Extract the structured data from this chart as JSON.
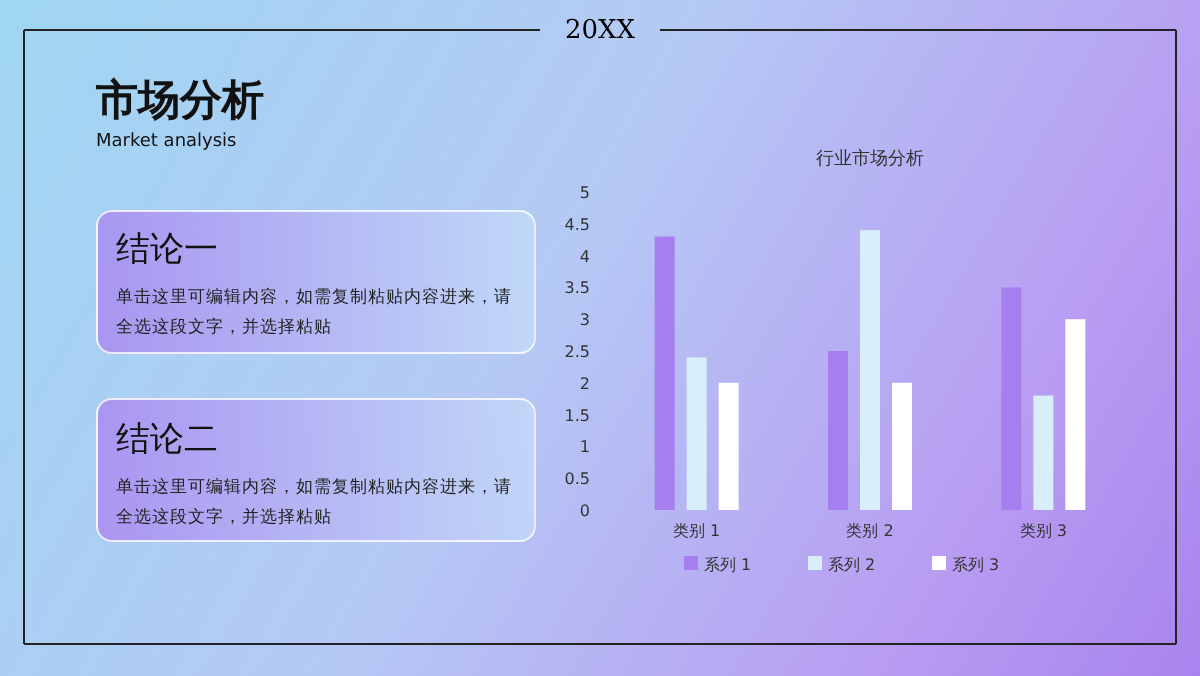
{
  "chart_data": {
    "type": "bar",
    "title": "行业市场分析",
    "categories": [
      "类别 1",
      "类别 2",
      "类别 3"
    ],
    "series": [
      {
        "name": "系列 1",
        "color": "#a77ef0",
        "values": [
          4.3,
          2.5,
          3.5
        ]
      },
      {
        "name": "系列 2",
        "color": "#d8eefa",
        "values": [
          2.4,
          4.4,
          1.8
        ]
      },
      {
        "name": "系列 3",
        "color": "#ffffff",
        "values": [
          2,
          2,
          3
        ]
      }
    ],
    "ylim": [
      0,
      5
    ],
    "yticks": [
      0,
      0.5,
      1,
      1.5,
      2,
      2.5,
      3,
      3.5,
      4,
      4.5,
      5
    ],
    "grid": false,
    "legend": "bottom",
    "annotations": [
      "20XX",
      "市场分析",
      "Market analysis",
      "结论一",
      "单击这里可编辑内容，如需复制粘贴内容进来，请全选这段文字，并选择粘贴",
      "结论二",
      "单击这里可编辑内容，如需复制粘贴内容进来，请全选这段文字，并选择粘贴"
    ]
  }
}
